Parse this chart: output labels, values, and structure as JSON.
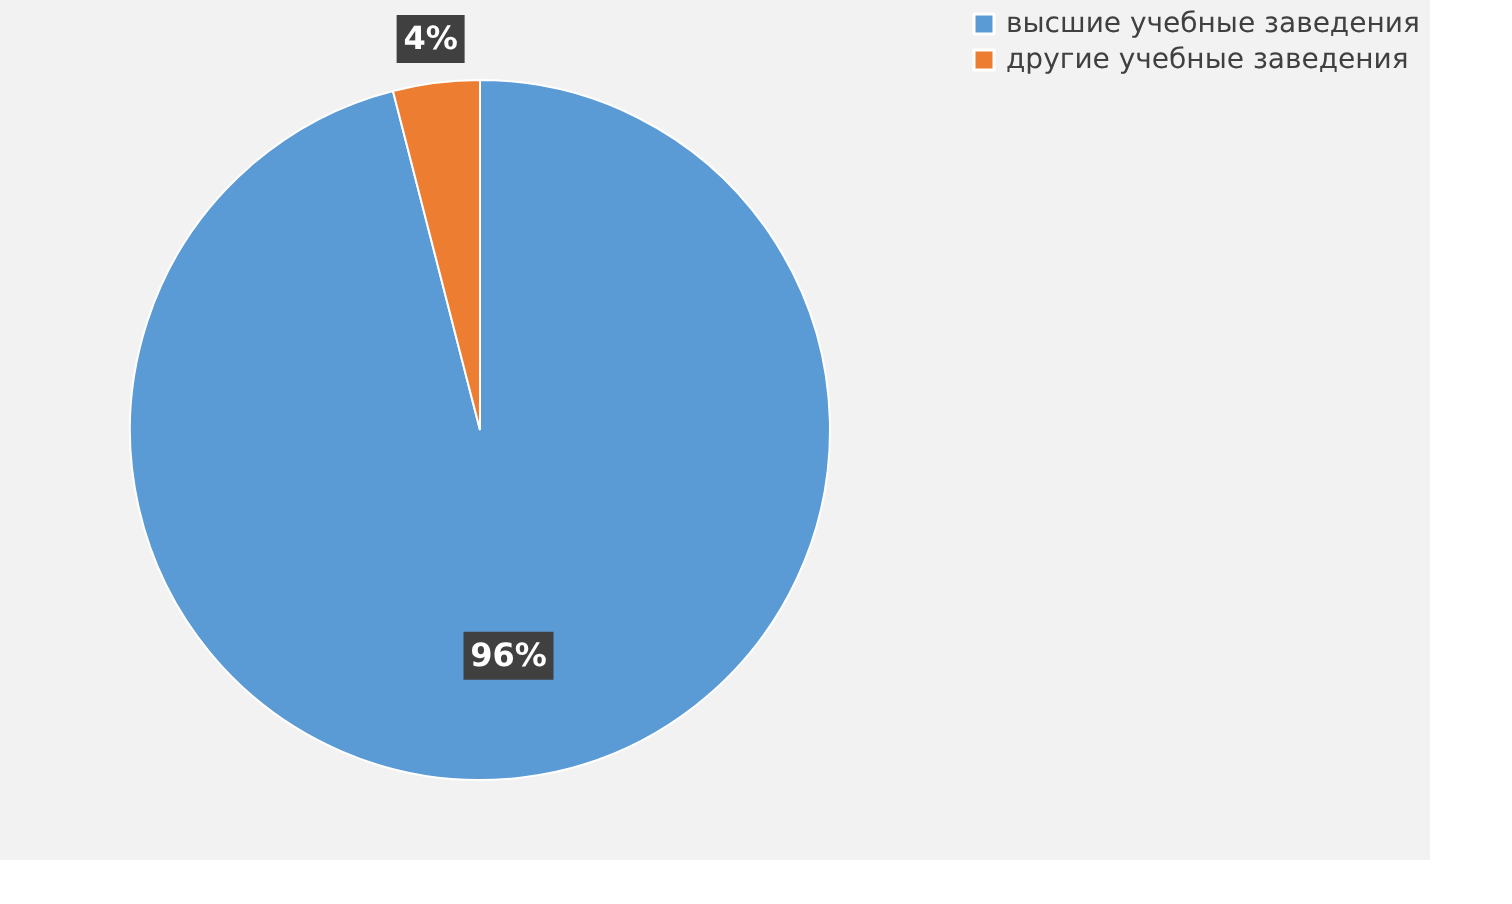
{
  "chart_data": {
    "type": "pie",
    "categories": [
      "высшие учебные заведения",
      "другие учебные заведения"
    ],
    "values": [
      96,
      4
    ],
    "colors": [
      "#5b9bd5",
      "#ed7d31"
    ],
    "value_labels": [
      "96%",
      "4%"
    ],
    "legend": "right"
  }
}
